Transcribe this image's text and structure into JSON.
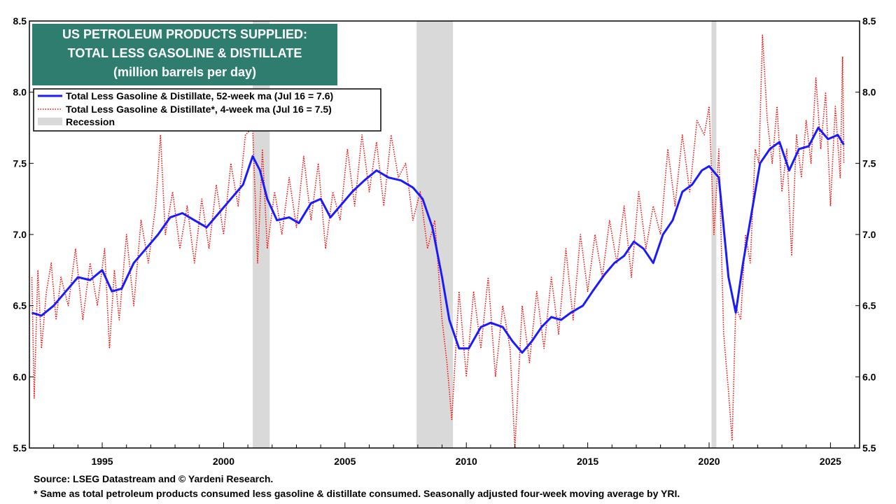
{
  "chart_data": {
    "type": "line",
    "title_lines": [
      "US PETROLEUM PRODUCTS SUPPLIED:",
      "TOTAL LESS GASOLINE & DISTILLATE",
      "(million barrels per day)"
    ],
    "title_bg_color": "#2e7d6e",
    "ylim": [
      5.5,
      8.5
    ],
    "y_ticks": [
      "5.5",
      "6.0",
      "6.5",
      "7.0",
      "7.5",
      "8.0",
      "8.5"
    ],
    "xlim": [
      1992.0,
      2026.2
    ],
    "x_ticks": [
      "1995",
      "2000",
      "2005",
      "2010",
      "2015",
      "2020",
      "2025"
    ],
    "legend": {
      "placement": "top-left",
      "entries": [
        "Total Less Gasoline & Distillate, 52-week ma (Jul 16 = 7.6)",
        "Total Less Gasoline & Distillate*, 4-week ma (Jul 16 = 7.5)",
        "Recession"
      ]
    },
    "recessions": [
      [
        2001.2,
        2001.9
      ],
      [
        2007.95,
        2009.45
      ],
      [
        2020.1,
        2020.3
      ]
    ],
    "recession_color": "#d9d9d9",
    "series": [
      {
        "name": "Total Less Gasoline & Distillate, 52-week ma (Jul 16 = 7.6)",
        "style": "solid",
        "color": "#1a1aff",
        "x": [
          1992.1,
          1992.5,
          1993.0,
          1993.5,
          1994.0,
          1994.5,
          1995.0,
          1995.4,
          1995.8,
          1996.3,
          1996.8,
          1997.3,
          1997.8,
          1998.3,
          1998.8,
          1999.3,
          1999.8,
          2000.3,
          2000.8,
          2001.2,
          2001.5,
          2001.8,
          2002.2,
          2002.7,
          2003.1,
          2003.6,
          2004.0,
          2004.4,
          2004.8,
          2005.3,
          2005.8,
          2006.3,
          2006.8,
          2007.3,
          2007.8,
          2008.2,
          2008.6,
          2009.0,
          2009.3,
          2009.7,
          2010.1,
          2010.6,
          2011.0,
          2011.5,
          2011.9,
          2012.3,
          2012.7,
          2013.1,
          2013.5,
          2013.9,
          2014.3,
          2014.8,
          2015.2,
          2015.7,
          2016.1,
          2016.5,
          2016.9,
          2017.3,
          2017.7,
          2018.1,
          2018.5,
          2018.9,
          2019.3,
          2019.7,
          2020.0,
          2020.4,
          2020.8,
          2021.1,
          2021.4,
          2021.8,
          2022.1,
          2022.5,
          2022.9,
          2023.3,
          2023.7,
          2024.1,
          2024.5,
          2024.9,
          2025.3,
          2025.55
        ],
        "values": [
          6.45,
          6.43,
          6.5,
          6.6,
          6.7,
          6.68,
          6.75,
          6.6,
          6.62,
          6.8,
          6.9,
          7.0,
          7.12,
          7.15,
          7.1,
          7.05,
          7.15,
          7.25,
          7.35,
          7.55,
          7.45,
          7.25,
          7.1,
          7.12,
          7.08,
          7.22,
          7.25,
          7.12,
          7.2,
          7.3,
          7.38,
          7.45,
          7.4,
          7.38,
          7.33,
          7.25,
          7.05,
          6.7,
          6.4,
          6.2,
          6.2,
          6.35,
          6.38,
          6.35,
          6.25,
          6.17,
          6.25,
          6.35,
          6.42,
          6.4,
          6.45,
          6.5,
          6.6,
          6.72,
          6.8,
          6.85,
          6.95,
          6.9,
          6.8,
          7.0,
          7.1,
          7.3,
          7.35,
          7.45,
          7.48,
          7.4,
          6.7,
          6.45,
          6.8,
          7.2,
          7.5,
          7.6,
          7.65,
          7.45,
          7.6,
          7.62,
          7.75,
          7.67,
          7.7,
          7.63
        ]
      },
      {
        "name": "Total Less Gasoline & Distillate*, 4-week ma (Jul 16 = 7.5)",
        "style": "dotted",
        "color": "#ff0000",
        "x": [
          1992.1,
          1992.2,
          1992.35,
          1992.5,
          1992.7,
          1992.9,
          1993.1,
          1993.3,
          1993.6,
          1993.9,
          1994.2,
          1994.5,
          1994.8,
          1995.1,
          1995.3,
          1995.5,
          1995.7,
          1996.0,
          1996.3,
          1996.6,
          1996.9,
          1997.2,
          1997.4,
          1997.6,
          1997.9,
          1998.2,
          1998.5,
          1998.8,
          1999.1,
          1999.4,
          1999.7,
          2000.0,
          2000.3,
          2000.6,
          2000.9,
          2001.2,
          2001.4,
          2001.6,
          2001.8,
          2002.1,
          2002.4,
          2002.7,
          2003.0,
          2003.3,
          2003.6,
          2003.9,
          2004.2,
          2004.5,
          2004.8,
          2005.1,
          2005.4,
          2005.7,
          2006.0,
          2006.3,
          2006.6,
          2006.9,
          2007.2,
          2007.5,
          2007.8,
          2008.1,
          2008.4,
          2008.7,
          2009.0,
          2009.2,
          2009.4,
          2009.7,
          2010.0,
          2010.3,
          2010.6,
          2010.9,
          2011.2,
          2011.5,
          2011.8,
          2012.0,
          2012.3,
          2012.6,
          2012.9,
          2013.2,
          2013.5,
          2013.8,
          2014.1,
          2014.4,
          2014.7,
          2015.0,
          2015.3,
          2015.6,
          2015.9,
          2016.2,
          2016.5,
          2016.8,
          2017.1,
          2017.4,
          2017.7,
          2018.0,
          2018.3,
          2018.6,
          2018.9,
          2019.2,
          2019.5,
          2019.8,
          2020.0,
          2020.2,
          2020.4,
          2020.6,
          2020.8,
          2020.95,
          2021.1,
          2021.3,
          2021.5,
          2021.7,
          2021.9,
          2022.05,
          2022.2,
          2022.4,
          2022.6,
          2022.8,
          2023.0,
          2023.2,
          2023.4,
          2023.6,
          2023.8,
          2024.0,
          2024.2,
          2024.4,
          2024.6,
          2024.8,
          2025.0,
          2025.2,
          2025.4,
          2025.5,
          2025.55
        ],
        "values": [
          6.7,
          5.85,
          6.75,
          6.2,
          6.6,
          6.8,
          6.4,
          6.7,
          6.5,
          6.9,
          6.4,
          6.8,
          6.5,
          6.9,
          6.2,
          6.75,
          6.4,
          7.0,
          6.5,
          7.1,
          6.8,
          7.2,
          7.7,
          7.0,
          7.3,
          6.9,
          7.2,
          6.8,
          7.25,
          6.9,
          7.35,
          7.0,
          7.5,
          7.2,
          7.7,
          7.75,
          6.8,
          7.6,
          6.9,
          7.3,
          7.0,
          7.4,
          7.05,
          7.55,
          7.1,
          7.5,
          6.9,
          7.3,
          7.1,
          7.6,
          7.2,
          7.7,
          7.3,
          7.65,
          7.2,
          7.7,
          7.4,
          7.5,
          7.1,
          7.3,
          6.9,
          7.1,
          6.4,
          6.1,
          5.7,
          6.6,
          6.0,
          6.6,
          6.2,
          6.7,
          6.0,
          6.5,
          6.2,
          5.5,
          6.5,
          6.1,
          6.6,
          6.2,
          6.7,
          6.3,
          6.9,
          6.4,
          7.0,
          6.6,
          7.0,
          6.7,
          7.1,
          6.8,
          7.2,
          6.7,
          7.3,
          6.9,
          7.2,
          7.0,
          7.6,
          7.2,
          7.7,
          7.3,
          7.8,
          7.7,
          7.9,
          7.0,
          7.6,
          6.3,
          5.9,
          5.55,
          6.5,
          6.4,
          7.0,
          6.8,
          7.6,
          7.5,
          8.4,
          7.8,
          7.5,
          7.9,
          7.3,
          7.6,
          6.85,
          7.7,
          7.4,
          7.8,
          7.5,
          8.1,
          7.6,
          8.0,
          7.2,
          7.9,
          7.4,
          8.25,
          7.5
        ]
      }
    ],
    "footnotes": [
      "Source: LSEG Datastream and © Yardeni Research.",
      "* Same as total petroleum products consumed less gasoline & distillate consumed. Seasonally adjusted four-week moving average by YRI."
    ]
  }
}
